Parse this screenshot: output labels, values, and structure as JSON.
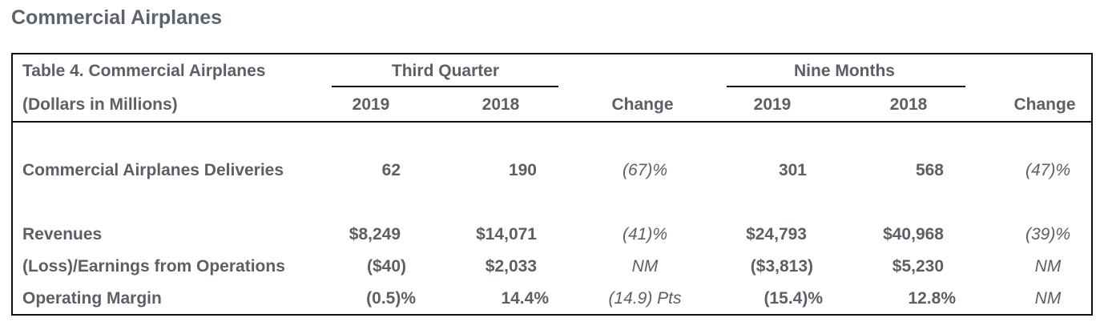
{
  "section_title": "Commercial Airplanes",
  "table": {
    "title": "Table 4. Commercial Airplanes",
    "subtitle": "(Dollars in Millions)",
    "group_headers": {
      "third_quarter": "Third Quarter",
      "nine_months": "Nine Months"
    },
    "column_headers": {
      "q_2019": "2019",
      "q_2018": "2018",
      "q_change": "Change",
      "nm_2019": "2019",
      "nm_2018": "2018",
      "nm_change": "Change"
    },
    "rows": [
      {
        "label": "Commercial Airplanes Deliveries",
        "q_2019": "62",
        "q_2018": "190",
        "q_change": "(67)%",
        "nm_2019": "301",
        "nm_2018": "568",
        "nm_change": "(47)%"
      },
      {
        "label": "Revenues",
        "q_2019": "$8,249",
        "q_2018": "$14,071",
        "q_change": "(41)%",
        "nm_2019": "$24,793",
        "nm_2018": "$40,968",
        "nm_change": "(39)%"
      },
      {
        "label": "(Loss)/Earnings from Operations",
        "q_2019": "($40)",
        "q_2018": "$2,033",
        "q_change": "NM",
        "nm_2019": "($3,813)",
        "nm_2018": "$5,230",
        "nm_change": "NM"
      },
      {
        "label": "Operating Margin",
        "q_2019": "(0.5)%",
        "q_2018": "14.4%",
        "q_change": "(14.9) Pts",
        "nm_2019": "(15.4)%",
        "nm_2018": "12.8%",
        "nm_change": "NM"
      }
    ]
  }
}
